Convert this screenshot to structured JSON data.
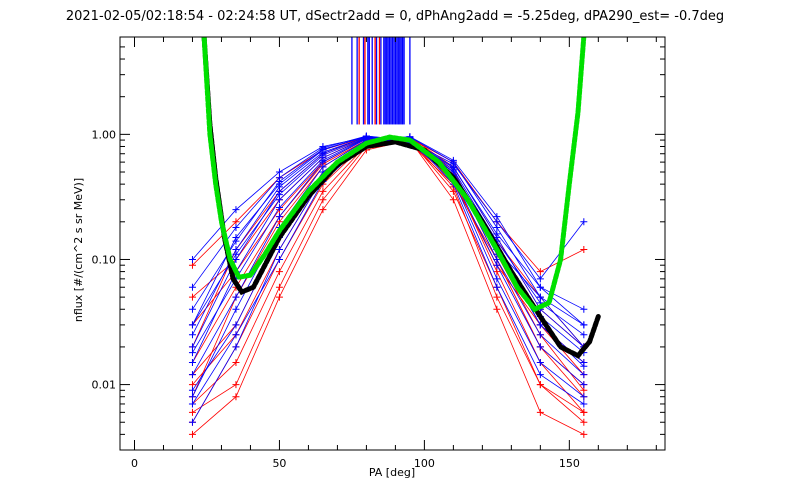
{
  "chart_data": {
    "type": "line",
    "title": "2021-02-05/02:18:54 - 02:24:58 UT, dSectr2add = 0, dPhAng2add = -5.25deg, dPA290_est=  -0.7deg",
    "xlabel": "PA [deg]",
    "ylabel": "nflux [#/(cm^2 s sr MeV)]",
    "xlim": [
      -5,
      183
    ],
    "ylim": [
      0.003,
      6
    ],
    "yscale": "log",
    "xticks": [
      {
        "v": 0,
        "label": "0"
      },
      {
        "v": 50,
        "label": "50"
      },
      {
        "v": 100,
        "label": "100"
      },
      {
        "v": 150,
        "label": "150"
      }
    ],
    "yticks": [
      {
        "v": 1,
        "label": "1.00"
      },
      {
        "v": 0.1,
        "label": "0.10"
      },
      {
        "v": 0.01,
        "label": "0.01"
      }
    ],
    "colors": {
      "red": "#ff0000",
      "blue": "#0000ff",
      "green": "#00e000",
      "black": "#000000"
    },
    "trace_pa": [
      20,
      35,
      50,
      65,
      80,
      95,
      110,
      125,
      140,
      155
    ],
    "red_traces": [
      [
        0.02,
        0.12,
        0.35,
        0.7,
        0.95,
        0.9,
        0.5,
        0.12,
        0.03,
        0.012
      ],
      [
        0.008,
        0.05,
        0.2,
        0.55,
        0.9,
        0.95,
        0.55,
        0.15,
        0.04,
        0.02
      ],
      [
        0.005,
        0.02,
        0.1,
        0.4,
        0.85,
        0.92,
        0.45,
        0.08,
        0.015,
        0.006
      ],
      [
        0.09,
        0.2,
        0.45,
        0.75,
        0.95,
        0.85,
        0.4,
        0.1,
        0.02,
        0.01
      ],
      [
        0.012,
        0.03,
        0.15,
        0.5,
        0.88,
        0.9,
        0.35,
        0.06,
        0.01,
        0.005
      ],
      [
        0.006,
        0.01,
        0.06,
        0.3,
        0.8,
        0.95,
        0.5,
        0.1,
        0.02,
        0.008
      ],
      [
        0.03,
        0.08,
        0.25,
        0.6,
        0.92,
        0.88,
        0.42,
        0.09,
        0.03,
        0.015
      ],
      [
        0.004,
        0.008,
        0.05,
        0.25,
        0.75,
        0.9,
        0.3,
        0.04,
        0.006,
        0.004
      ],
      [
        0.015,
        0.06,
        0.22,
        0.58,
        0.9,
        0.93,
        0.6,
        0.2,
        0.08,
        0.12
      ],
      [
        0.01,
        0.025,
        0.12,
        0.45,
        0.86,
        0.9,
        0.38,
        0.05,
        0.01,
        0.006
      ],
      [
        0.05,
        0.1,
        0.3,
        0.65,
        0.94,
        0.87,
        0.48,
        0.14,
        0.05,
        0.02
      ],
      [
        0.007,
        0.015,
        0.08,
        0.35,
        0.82,
        0.94,
        0.52,
        0.11,
        0.025,
        0.009
      ]
    ],
    "blue_traces": [
      [
        0.03,
        0.15,
        0.4,
        0.75,
        0.97,
        0.9,
        0.55,
        0.15,
        0.04,
        0.02
      ],
      [
        0.015,
        0.08,
        0.3,
        0.65,
        0.93,
        0.92,
        0.5,
        0.12,
        0.03,
        0.015
      ],
      [
        0.1,
        0.25,
        0.5,
        0.8,
        0.95,
        0.85,
        0.45,
        0.12,
        0.05,
        0.03
      ],
      [
        0.008,
        0.04,
        0.18,
        0.55,
        0.9,
        0.95,
        0.6,
        0.18,
        0.05,
        0.02
      ],
      [
        0.02,
        0.1,
        0.35,
        0.7,
        0.96,
        0.9,
        0.5,
        0.1,
        0.025,
        0.012
      ],
      [
        0.012,
        0.05,
        0.22,
        0.6,
        0.92,
        0.93,
        0.45,
        0.09,
        0.02,
        0.01
      ],
      [
        0.06,
        0.18,
        0.45,
        0.78,
        0.97,
        0.88,
        0.58,
        0.2,
        0.07,
        0.2
      ],
      [
        0.005,
        0.02,
        0.12,
        0.45,
        0.88,
        0.94,
        0.4,
        0.06,
        0.012,
        0.007
      ],
      [
        0.025,
        0.12,
        0.38,
        0.72,
        0.95,
        0.9,
        0.52,
        0.14,
        0.045,
        0.025
      ],
      [
        0.009,
        0.03,
        0.15,
        0.5,
        0.9,
        0.96,
        0.62,
        0.22,
        0.06,
        0.03
      ],
      [
        0.04,
        0.14,
        0.42,
        0.76,
        0.96,
        0.87,
        0.47,
        0.11,
        0.035,
        0.018
      ],
      [
        0.018,
        0.07,
        0.26,
        0.62,
        0.93,
        0.91,
        0.5,
        0.13,
        0.03,
        0.014
      ],
      [
        0.007,
        0.025,
        0.1,
        0.42,
        0.86,
        0.93,
        0.43,
        0.07,
        0.015,
        0.008
      ],
      [
        0.03,
        0.11,
        0.33,
        0.68,
        0.94,
        0.89,
        0.54,
        0.16,
        0.06,
        0.04
      ]
    ],
    "green_fit": [
      [
        24,
        6
      ],
      [
        26,
        1.0
      ],
      [
        28,
        0.4
      ],
      [
        30,
        0.2
      ],
      [
        33,
        0.1
      ],
      [
        36,
        0.072
      ],
      [
        40,
        0.075
      ],
      [
        45,
        0.11
      ],
      [
        50,
        0.17
      ],
      [
        60,
        0.35
      ],
      [
        70,
        0.6
      ],
      [
        80,
        0.85
      ],
      [
        88,
        0.95
      ],
      [
        95,
        0.9
      ],
      [
        105,
        0.6
      ],
      [
        115,
        0.3
      ],
      [
        125,
        0.12
      ],
      [
        132,
        0.06
      ],
      [
        138,
        0.04
      ],
      [
        143,
        0.045
      ],
      [
        147,
        0.1
      ],
      [
        150,
        0.4
      ],
      [
        153,
        1.5
      ],
      [
        155,
        6
      ]
    ],
    "black_fit": [
      [
        24,
        6
      ],
      [
        26,
        1.2
      ],
      [
        28,
        0.45
      ],
      [
        31,
        0.15
      ],
      [
        34,
        0.07
      ],
      [
        37,
        0.055
      ],
      [
        41,
        0.06
      ],
      [
        45,
        0.09
      ],
      [
        50,
        0.15
      ],
      [
        60,
        0.32
      ],
      [
        70,
        0.57
      ],
      [
        80,
        0.8
      ],
      [
        90,
        0.87
      ],
      [
        100,
        0.75
      ],
      [
        110,
        0.45
      ],
      [
        120,
        0.2
      ],
      [
        130,
        0.08
      ],
      [
        140,
        0.035
      ],
      [
        147,
        0.02
      ],
      [
        153,
        0.017
      ],
      [
        157,
        0.022
      ],
      [
        160,
        0.035
      ]
    ],
    "vlines_blue": [
      75,
      76.8,
      79,
      80.5,
      81,
      82,
      83.5,
      85,
      86,
      86.5,
      87,
      87.5,
      88,
      88.5,
      89,
      89.5,
      90,
      90.5,
      91,
      91.5,
      92,
      92.5,
      93,
      95
    ],
    "vlines_red": [
      77.5,
      79.5,
      83,
      84.5
    ],
    "vline_bottom": 1.2
  }
}
